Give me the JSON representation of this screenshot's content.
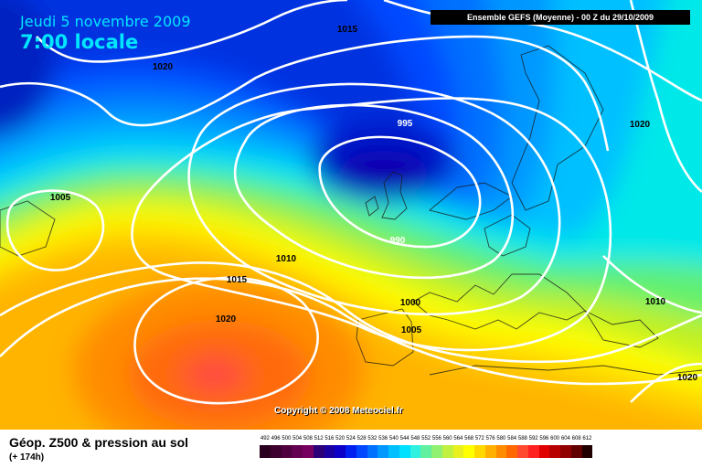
{
  "header": {
    "date": "Jeudi 5 novembre 2009",
    "time": "7:00 locale",
    "run": "Ensemble GEFS (Moyenne)   - 00 Z du 29/10/2009"
  },
  "map": {
    "copyright": "Copyright © 2008 Meteociel.fr",
    "isobar_labels": [
      {
        "text": "1015"
      },
      {
        "text": "1020"
      },
      {
        "text": "995"
      },
      {
        "text": "1020"
      },
      {
        "text": "1005"
      },
      {
        "text": "990"
      },
      {
        "text": "1010"
      },
      {
        "text": "1015"
      },
      {
        "text": "1000"
      },
      {
        "text": "1010"
      },
      {
        "text": "1020"
      },
      {
        "text": "1005"
      },
      {
        "text": "1020"
      }
    ]
  },
  "footer": {
    "title": "Géop. Z500 & pression au sol",
    "subtitle": "(+ 174h)"
  },
  "legend": {
    "values": [
      "492",
      "496",
      "500",
      "504",
      "508",
      "512",
      "516",
      "520",
      "524",
      "528",
      "532",
      "536",
      "540",
      "544",
      "548",
      "552",
      "556",
      "560",
      "564",
      "568",
      "572",
      "576",
      "580",
      "584",
      "588",
      "592",
      "596",
      "600",
      "604",
      "608",
      "612"
    ],
    "colors": [
      "#2a001e",
      "#3d002e",
      "#50003f",
      "#63004f",
      "#760060",
      "#2c0078",
      "#1a00a0",
      "#0c00c8",
      "#0020f0",
      "#0048ff",
      "#0070ff",
      "#0098ff",
      "#00c0ff",
      "#00e0ff",
      "#30f0e0",
      "#60f0a0",
      "#90f070",
      "#c0f040",
      "#e8f020",
      "#ffff00",
      "#ffd800",
      "#ffb000",
      "#ff8c00",
      "#ff6800",
      "#ff4a30",
      "#ff2020",
      "#e00000",
      "#b80000",
      "#900000",
      "#600000",
      "#200000"
    ]
  }
}
